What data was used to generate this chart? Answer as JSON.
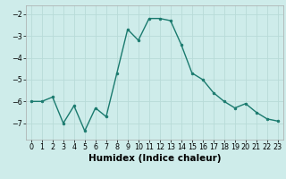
{
  "x": [
    0,
    1,
    2,
    3,
    4,
    5,
    6,
    7,
    8,
    9,
    10,
    11,
    12,
    13,
    14,
    15,
    16,
    17,
    18,
    19,
    20,
    21,
    22,
    23
  ],
  "y": [
    -6.0,
    -6.0,
    -5.8,
    -7.0,
    -6.2,
    -7.35,
    -6.3,
    -6.7,
    -4.7,
    -2.7,
    -3.2,
    -2.2,
    -2.2,
    -2.3,
    -3.4,
    -4.7,
    -5.0,
    -5.6,
    -6.0,
    -6.3,
    -6.1,
    -6.5,
    -6.8,
    -6.9
  ],
  "line_color": "#1a7a6e",
  "marker": "o",
  "markersize": 2.0,
  "linewidth": 1.0,
  "xlim": [
    -0.5,
    23.5
  ],
  "ylim": [
    -7.75,
    -1.6
  ],
  "yticks": [
    -7,
    -6,
    -5,
    -4,
    -3,
    -2
  ],
  "xticks": [
    0,
    1,
    2,
    3,
    4,
    5,
    6,
    7,
    8,
    9,
    10,
    11,
    12,
    13,
    14,
    15,
    16,
    17,
    18,
    19,
    20,
    21,
    22,
    23
  ],
  "xlabel": "Humidex (Indice chaleur)",
  "bg_color": "#ceecea",
  "grid_color": "#b8dbd8",
  "tick_labelsize": 5.8,
  "xlabel_fontsize": 7.5,
  "xlabel_fontweight": "bold"
}
